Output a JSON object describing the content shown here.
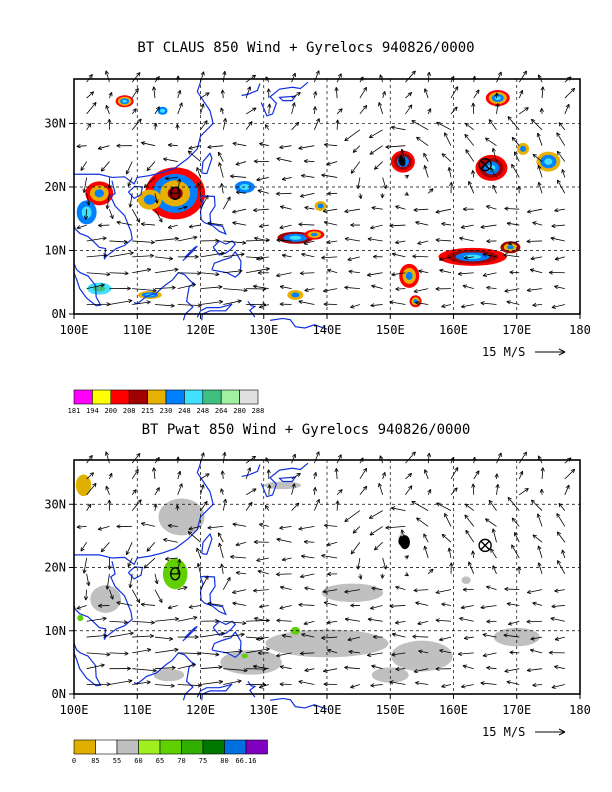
{
  "colors": {
    "land_outline": "#1030e0",
    "grid": "#000000",
    "claus": [
      "#ff00ff",
      "#ffff00",
      "#ff0000",
      "#a00000",
      "#e8b000",
      "#0080ff",
      "#40e0ff",
      "#40c080",
      "#a0f0a0",
      "#e0e0e0"
    ],
    "pwat": [
      "#e0b000",
      "#ffffff",
      "#c0c0c0",
      "#a0f020",
      "#60d000",
      "#30b000",
      "#007800",
      "#0070e0",
      "#8000c0"
    ]
  },
  "axes": {
    "x_ticks": [
      "100E",
      "110E",
      "120E",
      "130E",
      "140E",
      "150E",
      "160E",
      "170E",
      "180"
    ],
    "y_ticks": [
      "0N",
      "10N",
      "20N",
      "30N"
    ],
    "lon_range": [
      100,
      180
    ],
    "lat_range": [
      0,
      37
    ]
  },
  "panel1": {
    "title": "BT CLAUS 850 Wind + Gyrelocs 940826/0000",
    "vector_label": "15 M/S",
    "legend_labels": [
      "181",
      "194",
      "200",
      "208",
      "215",
      "230",
      "248",
      "248",
      "264",
      "280",
      "288"
    ]
  },
  "panel2": {
    "title": "BT Pwat 850 Wind + Gyrelocs 940826/0000",
    "vector_label": "15 M/S",
    "legend_labels": [
      "0",
      "85",
      "55",
      "60",
      "65",
      "70",
      "75",
      "80",
      "66.16"
    ]
  },
  "gyre_locations": [
    {
      "lon": 165,
      "lat": 23.5,
      "symbol": "crossed-circle"
    },
    {
      "lon": 116,
      "lat": 19,
      "symbol": "theta"
    }
  ],
  "typhoon_symbol": {
    "lon": 152,
    "lat": 24
  }
}
